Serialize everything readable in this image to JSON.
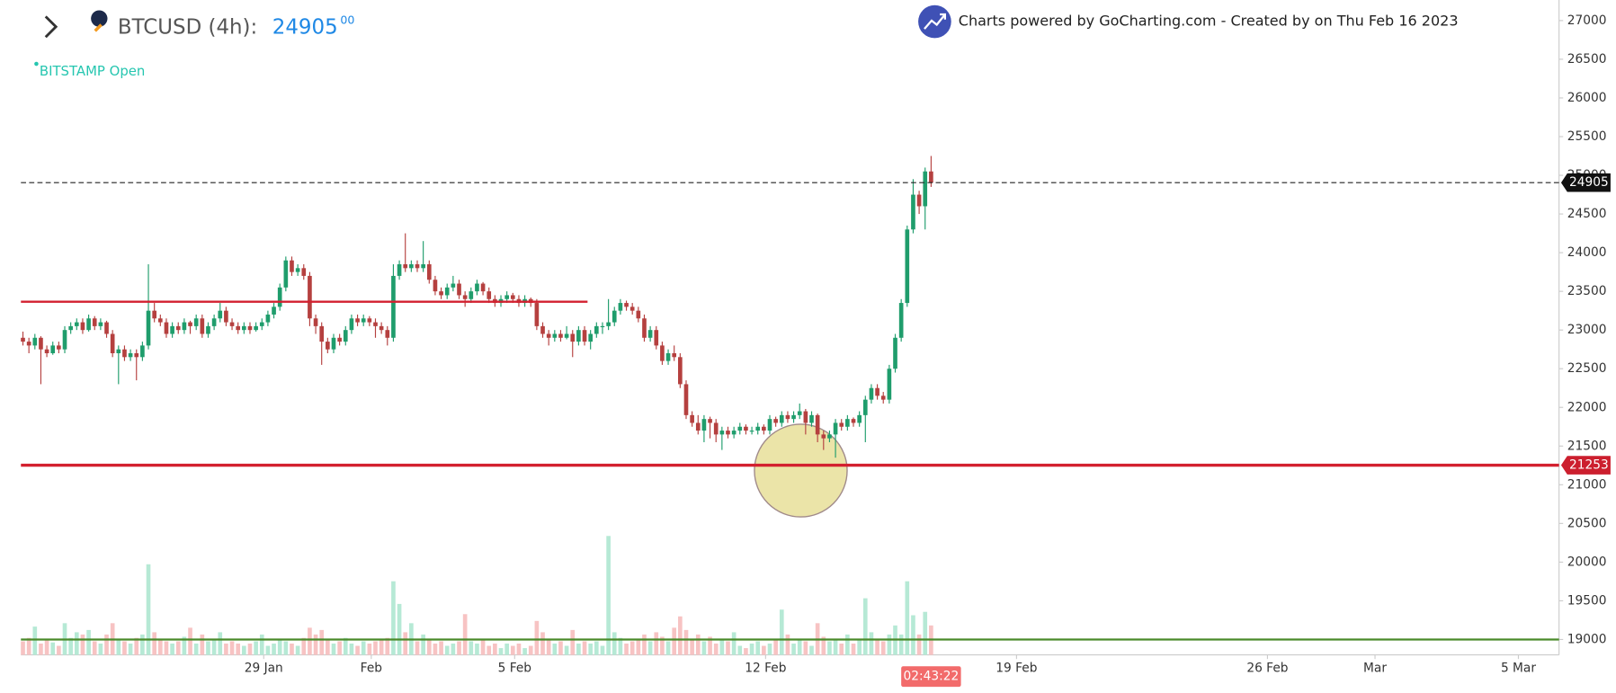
{
  "header": {
    "symbol": "BTCUSD (4h):",
    "price": "24905",
    "price_decimals": "00",
    "exchange_status": "BITSTAMP Open",
    "credit": "Charts powered by GoCharting.com - Created by  on Thu Feb 16 2023"
  },
  "chart_data": {
    "type": "candlestick",
    "up_color": "#1f9d6c",
    "down_color": "#b5403f",
    "up_volume_color": "#b6e9d5",
    "down_volume_color": "#f7c3c3",
    "ylim": [
      18854,
      27266
    ],
    "yticks": [
      19000,
      19500,
      20000,
      20500,
      21000,
      21500,
      22000,
      22500,
      23000,
      23500,
      24000,
      24500,
      25000,
      25500,
      26000,
      26500,
      27000
    ],
    "xlim": [
      -0.34,
      257.1
    ],
    "xticks": [
      {
        "value": 40.3,
        "label": "29 Jan"
      },
      {
        "value": 58.3,
        "label": "Feb"
      },
      {
        "value": 82.3,
        "label": "5 Feb"
      },
      {
        "value": 124.3,
        "label": "12 Feb"
      },
      {
        "value": 166.3,
        "label": "19 Feb"
      },
      {
        "value": 208.3,
        "label": "26 Feb"
      },
      {
        "value": 226.3,
        "label": "Mar"
      },
      {
        "value": 250.3,
        "label": "5 Mar"
      }
    ],
    "last_price": 24905,
    "countdown": "02:43:22",
    "hlines": [
      {
        "value": 23366,
        "color": "#d3202f",
        "end": 94.5
      },
      {
        "value": 21253,
        "color": "#d3202f"
      },
      {
        "value": 19000,
        "color": "#4a8a2a"
      }
    ],
    "candles": [
      [
        22900,
        22980,
        22800,
        22850,
        12
      ],
      [
        22850,
        22900,
        22700,
        22800,
        15
      ],
      [
        22800,
        22950,
        22750,
        22900,
        25
      ],
      [
        22900,
        22920,
        22300,
        22750,
        10
      ],
      [
        22750,
        22800,
        22650,
        22700,
        14
      ],
      [
        22700,
        22850,
        22680,
        22800,
        11
      ],
      [
        22800,
        22850,
        22700,
        22750,
        8
      ],
      [
        22750,
        23050,
        22700,
        23000,
        28
      ],
      [
        23000,
        23100,
        22950,
        23050,
        15
      ],
      [
        23050,
        23150,
        23000,
        23100,
        20
      ],
      [
        23100,
        23150,
        22950,
        23000,
        18
      ],
      [
        23000,
        23200,
        22980,
        23150,
        22
      ],
      [
        23150,
        23180,
        23000,
        23050,
        12
      ],
      [
        23050,
        23150,
        23000,
        23100,
        10
      ],
      [
        23100,
        23120,
        22900,
        22950,
        18
      ],
      [
        22950,
        23000,
        22650,
        22700,
        28
      ],
      [
        22700,
        22800,
        22300,
        22750,
        14
      ],
      [
        22750,
        22800,
        22600,
        22650,
        12
      ],
      [
        22650,
        22750,
        22600,
        22700,
        10
      ],
      [
        22700,
        22750,
        22350,
        22650,
        15
      ],
      [
        22650,
        22850,
        22600,
        22800,
        18
      ],
      [
        22800,
        23850,
        22750,
        23250,
        80
      ],
      [
        23250,
        23350,
        23100,
        23150,
        20
      ],
      [
        23150,
        23200,
        23050,
        23100,
        14
      ],
      [
        23100,
        23150,
        22900,
        22950,
        12
      ],
      [
        22950,
        23100,
        22900,
        23050,
        10
      ],
      [
        23050,
        23100,
        22950,
        23000,
        12
      ],
      [
        23000,
        23150,
        22950,
        23100,
        16
      ],
      [
        23100,
        23120,
        22950,
        23050,
        24
      ],
      [
        23050,
        23200,
        23000,
        23150,
        10
      ],
      [
        23150,
        23200,
        22900,
        22950,
        18
      ],
      [
        22950,
        23100,
        22900,
        23050,
        12
      ],
      [
        23050,
        23200,
        23000,
        23150,
        14
      ],
      [
        23150,
        23350,
        23100,
        23250,
        20
      ],
      [
        23250,
        23300,
        23050,
        23100,
        10
      ],
      [
        23100,
        23150,
        23000,
        23050,
        12
      ],
      [
        23050,
        23100,
        22950,
        23000,
        10
      ],
      [
        23000,
        23100,
        22950,
        23050,
        8
      ],
      [
        23050,
        23100,
        22950,
        23000,
        10
      ],
      [
        23000,
        23100,
        22980,
        23050,
        12
      ],
      [
        23050,
        23150,
        23000,
        23100,
        18
      ],
      [
        23100,
        23250,
        23050,
        23200,
        8
      ],
      [
        23200,
        23350,
        23150,
        23300,
        10
      ],
      [
        23300,
        23600,
        23250,
        23550,
        14
      ],
      [
        23550,
        23950,
        23500,
        23900,
        12
      ],
      [
        23900,
        23950,
        23700,
        23750,
        10
      ],
      [
        23750,
        23850,
        23700,
        23800,
        8
      ],
      [
        23800,
        23850,
        23650,
        23700,
        15
      ],
      [
        23700,
        23750,
        23050,
        23150,
        24
      ],
      [
        23150,
        23200,
        22950,
        23050,
        18
      ],
      [
        23050,
        23100,
        22550,
        22850,
        22
      ],
      [
        22850,
        22900,
        22700,
        22750,
        14
      ],
      [
        22750,
        22950,
        22700,
        22900,
        10
      ],
      [
        22900,
        22950,
        22800,
        22850,
        12
      ],
      [
        22850,
        23050,
        22800,
        23000,
        15
      ],
      [
        23000,
        23200,
        22950,
        23150,
        10
      ],
      [
        23150,
        23200,
        23050,
        23100,
        8
      ],
      [
        23100,
        23200,
        23050,
        23150,
        12
      ],
      [
        23150,
        23180,
        23050,
        23100,
        10
      ],
      [
        23100,
        23150,
        22900,
        23050,
        12
      ],
      [
        23050,
        23100,
        22950,
        23000,
        14
      ],
      [
        23000,
        23050,
        22800,
        22900,
        15
      ],
      [
        22900,
        23850,
        22850,
        23700,
        65
      ],
      [
        23700,
        23900,
        23650,
        23850,
        45
      ],
      [
        23850,
        24250,
        23750,
        23800,
        20
      ],
      [
        23800,
        23900,
        23750,
        23850,
        28
      ],
      [
        23850,
        23900,
        23750,
        23800,
        12
      ],
      [
        23800,
        24150,
        23750,
        23850,
        18
      ],
      [
        23850,
        23900,
        23600,
        23650,
        14
      ],
      [
        23650,
        23700,
        23450,
        23500,
        10
      ],
      [
        23500,
        23550,
        23400,
        23450,
        12
      ],
      [
        23450,
        23600,
        23400,
        23550,
        8
      ],
      [
        23550,
        23700,
        23500,
        23600,
        10
      ],
      [
        23600,
        23650,
        23400,
        23450,
        12
      ],
      [
        23450,
        23500,
        23300,
        23400,
        36
      ],
      [
        23400,
        23550,
        23350,
        23500,
        12
      ],
      [
        23500,
        23650,
        23450,
        23600,
        10
      ],
      [
        23600,
        23620,
        23450,
        23500,
        14
      ],
      [
        23500,
        23550,
        23350,
        23400,
        8
      ],
      [
        23400,
        23450,
        23300,
        23350,
        10
      ],
      [
        23350,
        23450,
        23300,
        23400,
        6
      ],
      [
        23400,
        23500,
        23350,
        23450,
        10
      ],
      [
        23450,
        23480,
        23350,
        23400,
        8
      ],
      [
        23400,
        23450,
        23300,
        23350,
        10
      ],
      [
        23350,
        23450,
        23300,
        23400,
        6
      ],
      [
        23400,
        23420,
        23300,
        23350,
        8
      ],
      [
        23350,
        23400,
        23000,
        23050,
        30
      ],
      [
        23050,
        23100,
        22900,
        22950,
        20
      ],
      [
        22950,
        23000,
        22800,
        22900,
        14
      ],
      [
        22900,
        23000,
        22850,
        22950,
        10
      ],
      [
        22950,
        23000,
        22850,
        22900,
        12
      ],
      [
        22900,
        23050,
        22880,
        22950,
        8
      ],
      [
        22950,
        23000,
        22650,
        22850,
        22
      ],
      [
        22850,
        23050,
        22800,
        23000,
        10
      ],
      [
        23000,
        23050,
        22800,
        22850,
        12
      ],
      [
        22850,
        23000,
        22750,
        22950,
        10
      ],
      [
        22950,
        23100,
        22900,
        23050,
        12
      ],
      [
        23050,
        23100,
        22950,
        23050,
        8
      ],
      [
        23050,
        23400,
        23000,
        23100,
        105
      ],
      [
        23100,
        23300,
        23050,
        23250,
        20
      ],
      [
        23250,
        23400,
        23200,
        23350,
        15
      ],
      [
        23350,
        23380,
        23250,
        23300,
        10
      ],
      [
        23300,
        23350,
        23200,
        23250,
        12
      ],
      [
        23250,
        23300,
        23100,
        23150,
        14
      ],
      [
        23150,
        23200,
        22850,
        22900,
        18
      ],
      [
        22900,
        23050,
        22850,
        23000,
        12
      ],
      [
        23000,
        23050,
        22750,
        22800,
        20
      ],
      [
        22800,
        22850,
        22550,
        22600,
        16
      ],
      [
        22600,
        22750,
        22550,
        22700,
        12
      ],
      [
        22700,
        22800,
        22600,
        22650,
        24
      ],
      [
        22650,
        22700,
        22250,
        22300,
        34
      ],
      [
        22300,
        22350,
        21850,
        21900,
        22
      ],
      [
        21900,
        21950,
        21750,
        21800,
        14
      ],
      [
        21800,
        21900,
        21650,
        21700,
        18
      ],
      [
        21700,
        21900,
        21550,
        21850,
        12
      ],
      [
        21850,
        21880,
        21600,
        21800,
        16
      ],
      [
        21800,
        21850,
        21550,
        21650,
        10
      ],
      [
        21650,
        21750,
        21450,
        21700,
        14
      ],
      [
        21700,
        21750,
        21600,
        21650,
        12
      ],
      [
        21650,
        21750,
        21600,
        21700,
        20
      ],
      [
        21700,
        21800,
        21650,
        21750,
        8
      ],
      [
        21750,
        21780,
        21650,
        21700,
        6
      ],
      [
        21700,
        21750,
        21650,
        21700,
        10
      ],
      [
        21700,
        21800,
        21650,
        21750,
        12
      ],
      [
        21750,
        21780,
        21650,
        21700,
        8
      ],
      [
        21700,
        21900,
        21650,
        21850,
        10
      ],
      [
        21850,
        21880,
        21750,
        21800,
        14
      ],
      [
        21800,
        21950,
        21750,
        21900,
        40
      ],
      [
        21900,
        21950,
        21800,
        21850,
        18
      ],
      [
        21850,
        21950,
        21800,
        21900,
        10
      ],
      [
        21900,
        22050,
        21850,
        21950,
        14
      ],
      [
        21950,
        21980,
        21650,
        21800,
        12
      ],
      [
        21800,
        21950,
        21750,
        21900,
        8
      ],
      [
        21900,
        21920,
        21550,
        21650,
        28
      ],
      [
        21650,
        21700,
        21450,
        21600,
        16
      ],
      [
        21600,
        21700,
        21550,
        21650,
        12
      ],
      [
        21650,
        21850,
        21350,
        21800,
        14
      ],
      [
        21800,
        21850,
        21700,
        21750,
        10
      ],
      [
        21750,
        21900,
        21700,
        21850,
        18
      ],
      [
        21850,
        21870,
        21750,
        21800,
        10
      ],
      [
        21800,
        21950,
        21750,
        21900,
        14
      ],
      [
        21900,
        22150,
        21550,
        22100,
        50
      ],
      [
        22100,
        22300,
        22050,
        22250,
        20
      ],
      [
        22250,
        22300,
        22100,
        22150,
        14
      ],
      [
        22150,
        22200,
        22050,
        22100,
        12
      ],
      [
        22100,
        22550,
        22050,
        22500,
        18
      ],
      [
        22500,
        22950,
        22450,
        22900,
        26
      ],
      [
        22900,
        23400,
        22850,
        23350,
        18
      ],
      [
        23350,
        24350,
        23300,
        24300,
        65
      ],
      [
        24300,
        24950,
        24250,
        24750,
        35
      ],
      [
        24750,
        24800,
        24500,
        24600,
        18
      ],
      [
        24600,
        25100,
        24300,
        25050,
        38
      ],
      [
        25050,
        25250,
        24850,
        24905,
        26
      ]
    ]
  }
}
